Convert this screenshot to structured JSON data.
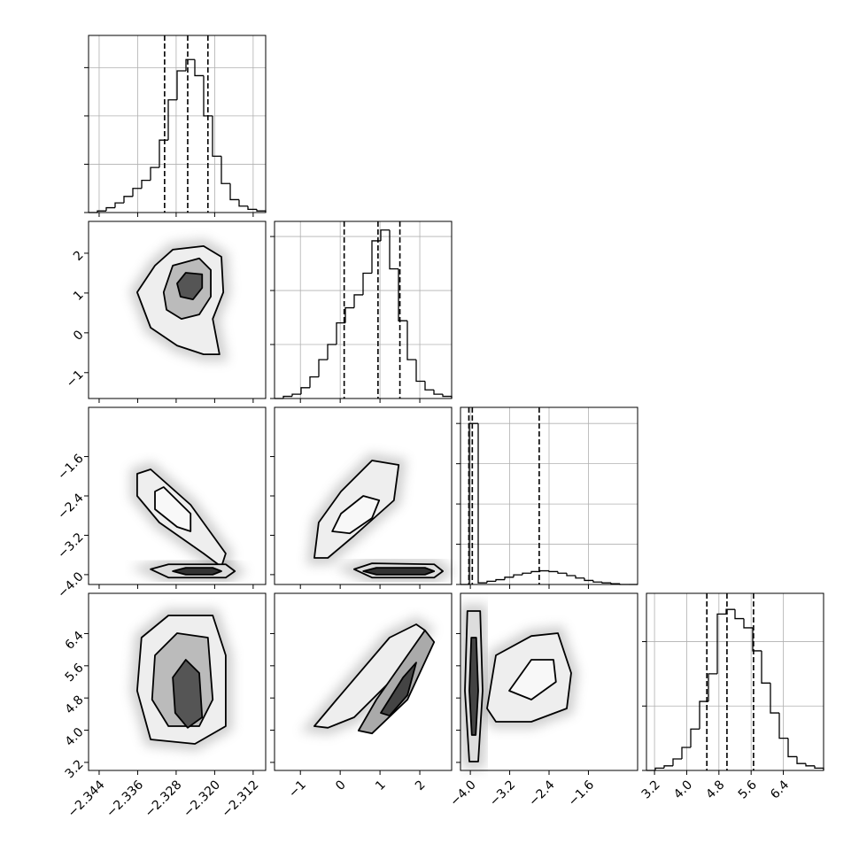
{
  "chart_data": {
    "type": "corner",
    "grid": true,
    "parameters": [
      {
        "lim": [
          -2.3462,
          -2.3094
        ],
        "ticks": [
          {
            "value": -2.344,
            "label": "−2.344"
          },
          {
            "value": -2.336,
            "label": "−2.336"
          },
          {
            "value": -2.328,
            "label": "−2.328"
          },
          {
            "value": -2.32,
            "label": "−2.320"
          },
          {
            "value": -2.312,
            "label": "−2.312"
          }
        ],
        "quantiles": [
          -2.3304,
          -2.3256,
          -2.3214
        ],
        "hist": {
          "bins": [
            -2.3462,
            -2.34436,
            -2.34252,
            -2.34068,
            -2.33884,
            -2.337,
            -2.33516,
            -2.33332,
            -2.33148,
            -2.32964,
            -2.3278,
            -2.32596,
            -2.32412,
            -2.32228,
            -2.32044,
            -2.3186,
            -2.31676,
            -2.31492,
            -2.31308,
            -2.31124,
            -2.3094
          ],
          "counts": [
            0,
            1,
            3,
            6,
            10,
            15,
            20,
            28,
            45,
            70,
            88,
            95,
            85,
            60,
            35,
            18,
            8,
            4,
            2,
            1
          ],
          "ylim": [
            0,
            110
          ],
          "yticks": [
            0,
            30,
            60,
            90
          ]
        }
      },
      {
        "lim": [
          -1.65,
          2.8
        ],
        "ticks": [
          {
            "value": -1,
            "label": "−1"
          },
          0,
          1,
          2
        ],
        "quantiles": [
          0.1,
          0.95,
          1.5
        ],
        "hist": {
          "bins": [
            -1.65,
            -1.4275,
            -1.205,
            -0.9825,
            -0.76,
            -0.5375,
            -0.315,
            -0.0925,
            0.13,
            0.3525,
            0.575,
            0.7975,
            1.02,
            1.2425,
            1.465,
            1.6875,
            1.91,
            2.1325,
            2.355,
            2.5775,
            2.8
          ],
          "counts": [
            0,
            1,
            2,
            5,
            10,
            18,
            25,
            35,
            42,
            48,
            58,
            73,
            78,
            60,
            36,
            18,
            8,
            4,
            2,
            1
          ],
          "ylim": [
            0,
            82
          ],
          "yticks": [
            0,
            25,
            50,
            75
          ]
        }
      },
      {
        "lim": [
          -4.2,
          -0.6
        ],
        "ticks": [
          {
            "value": -4.0,
            "label": "−4.0"
          },
          {
            "value": -3.2,
            "label": "−3.2"
          },
          {
            "value": -2.4,
            "label": "−2.4"
          },
          {
            "value": -1.6,
            "label": "−1.6"
          }
        ],
        "quantiles": [
          -4.03,
          -3.96,
          -2.6
        ],
        "hist": {
          "bins": [
            -4.2,
            -4.02,
            -3.84,
            -3.66,
            -3.48,
            -3.3,
            -3.12,
            -2.94,
            -2.76,
            -2.58,
            -2.4,
            -2.22,
            -2.04,
            -1.86,
            -1.68,
            -1.5,
            -1.32,
            -1.14,
            -0.96,
            -0.78,
            -0.6
          ],
          "counts": [
            0,
            200,
            2,
            4,
            6,
            9,
            12,
            14,
            16,
            17,
            16,
            14,
            11,
            8,
            5,
            3,
            2,
            1,
            0,
            0
          ],
          "ylim": [
            0,
            220
          ],
          "yticks": [
            0,
            50,
            100,
            150,
            200
          ]
        }
      },
      {
        "lim": [
          3.0,
          7.4
        ],
        "ticks": [
          3.2,
          {
            "value": 4.0,
            "label": "4.0"
          },
          4.8,
          5.6,
          6.4
        ],
        "quantiles": [
          4.5,
          5.0,
          5.66
        ],
        "hist": {
          "bins": [
            3.0,
            3.22,
            3.44,
            3.66,
            3.88,
            4.1,
            4.32,
            4.54,
            4.76,
            4.98,
            5.2,
            5.42,
            5.64,
            5.86,
            6.08,
            6.3,
            6.52,
            6.74,
            6.96,
            7.18,
            7.4
          ],
          "counts": [
            0,
            1,
            2,
            5,
            10,
            18,
            30,
            42,
            68,
            70,
            66,
            62,
            52,
            38,
            25,
            14,
            6,
            3,
            2,
            1
          ],
          "ylim": [
            0,
            77
          ],
          "yticks": [
            0,
            28,
            56
          ]
        }
      }
    ],
    "pairs": [
      {
        "contours": [
          {
            "fill": "#eeeeee",
            "x": [
              -2.3361,
              -2.3324,
              -2.3287,
              -2.3223,
              -2.3186,
              -2.3182,
              -2.3204,
              -2.319,
              -2.3223,
              -2.3278,
              -2.3333
            ],
            "y": [
              1.02,
              1.69,
              2.09,
              2.18,
              1.91,
              1.02,
              0.35,
              -0.54,
              -0.54,
              -0.32,
              0.13
            ]
          },
          {
            "fill": "#bbbbbb",
            "x": [
              -2.3306,
              -2.3287,
              -2.3232,
              -2.3208,
              -2.3208,
              -2.3232,
              -2.3269,
              -2.33
            ],
            "y": [
              1.02,
              1.69,
              1.87,
              1.58,
              0.91,
              0.46,
              0.35,
              0.58
            ]
          },
          {
            "fill": "#555555",
            "x": [
              -2.3278,
              -2.326,
              -2.3226,
              -2.3226,
              -2.3245,
              -2.3271
            ],
            "y": [
              1.24,
              1.51,
              1.47,
              1.13,
              0.84,
              0.91
            ]
          }
        ]
      },
      {
        "contours": [
          {
            "fill": "#eeeeee",
            "x": [
              -2.3361,
              -2.3333,
              -2.325,
              -2.3177,
              -2.3186,
              -2.3223,
              -2.3315,
              -2.3361
            ],
            "y": [
              -1.95,
              -1.86,
              -2.58,
              -3.57,
              -3.84,
              -3.57,
              -2.94,
              -2.4
            ]
          },
          {
            "fill": "#f8f8f8",
            "x": [
              -2.3324,
              -2.3306,
              -2.325,
              -2.325,
              -2.3278,
              -2.3324
            ],
            "y": [
              -2.31,
              -2.22,
              -2.76,
              -3.12,
              -3.03,
              -2.67
            ]
          },
          {
            "fill": "#dddddd",
            "x": [
              -2.3333,
              -2.3296,
              -2.3177,
              -2.3158,
              -2.3177,
              -2.3296
            ],
            "y": [
              -3.89,
              -3.79,
              -3.79,
              -3.93,
              -4.06,
              -4.06
            ]
          },
          {
            "fill": "#333333",
            "x": [
              -2.3287,
              -2.326,
              -2.3204,
              -2.3186,
              -2.3204,
              -2.326
            ],
            "y": [
              -3.93,
              -3.86,
              -3.86,
              -3.93,
              -4.0,
              -4.0
            ]
          }
        ]
      },
      {
        "contours": [
          {
            "fill": "#eeeeee",
            "x": [
              -0.65,
              -0.54,
              0.02,
              0.8,
              1.47,
              1.35,
              0.35,
              -0.31
            ],
            "y": [
              -3.66,
              -2.94,
              -2.31,
              -1.68,
              -1.77,
              -2.49,
              -3.21,
              -3.66
            ]
          },
          {
            "fill": "#f8f8f8",
            "x": [
              -0.2,
              0.02,
              0.58,
              0.98,
              0.8,
              0.24
            ],
            "y": [
              -3.12,
              -2.76,
              -2.4,
              -2.49,
              -2.85,
              -3.16
            ]
          },
          {
            "fill": "#dddddd",
            "x": [
              0.35,
              0.8,
              2.36,
              2.58,
              2.36,
              0.8
            ],
            "y": [
              -3.89,
              -3.77,
              -3.79,
              -3.93,
              -4.06,
              -4.06
            ]
          },
          {
            "fill": "#333333",
            "x": [
              0.58,
              0.91,
              2.13,
              2.36,
              2.13,
              0.91
            ],
            "y": [
              -3.93,
              -3.86,
              -3.86,
              -3.93,
              -4.0,
              -4.0
            ]
          }
        ]
      },
      {
        "contours": [
          {
            "fill": "#eeeeee",
            "x": [
              -2.3352,
              -2.3296,
              -2.3204,
              -2.3177,
              -2.3177,
              -2.3241,
              -2.3333,
              -2.3361
            ],
            "y": [
              6.3,
              6.85,
              6.85,
              5.86,
              4.1,
              3.66,
              3.77,
              4.98
            ]
          },
          {
            "fill": "#bbbbbb",
            "x": [
              -2.3324,
              -2.3278,
              -2.3214,
              -2.3204,
              -2.3232,
              -2.3296,
              -2.333
            ],
            "y": [
              5.86,
              6.41,
              6.3,
              4.76,
              4.1,
              4.1,
              4.76
            ]
          },
          {
            "fill": "#555555",
            "x": [
              -2.3287,
              -2.326,
              -2.3232,
              -2.3226,
              -2.3256,
              -2.3282
            ],
            "y": [
              5.31,
              5.75,
              5.42,
              4.32,
              4.06,
              4.43
            ]
          }
        ]
      },
      {
        "contours": [
          {
            "fill": "#eeeeee",
            "x": [
              -0.65,
              -0.09,
              1.24,
              1.91,
              2.13,
              1.47,
              0.35,
              -0.31
            ],
            "y": [
              4.1,
              4.76,
              6.3,
              6.63,
              6.48,
              5.42,
              4.32,
              4.06
            ]
          },
          {
            "fill": "#aaaaaa",
            "x": [
              0.46,
              0.91,
              1.69,
              2.13,
              2.36,
              1.69,
              0.8
            ],
            "y": [
              3.99,
              4.76,
              5.86,
              6.48,
              6.19,
              4.76,
              3.92
            ]
          },
          {
            "fill": "#444444",
            "x": [
              1.02,
              1.58,
              1.91,
              1.69,
              1.24
            ],
            "y": [
              4.43,
              5.31,
              5.68,
              4.87,
              4.36
            ]
          }
        ]
      },
      {
        "contours": [
          {
            "fill": "#dddddd",
            "x": [
              -4.06,
              -3.8,
              -3.75,
              -3.84,
              -4.02,
              -4.11
            ],
            "y": [
              6.96,
              6.96,
              4.98,
              3.22,
              3.22,
              4.98
            ]
          },
          {
            "fill": "#444444",
            "x": [
              -3.98,
              -3.88,
              -3.84,
              -3.89,
              -3.97,
              -4.02
            ],
            "y": [
              6.3,
              6.3,
              4.98,
              3.88,
              3.88,
              4.98
            ]
          },
          {
            "fill": "#eeeeee",
            "x": [
              -3.66,
              -3.48,
              -2.76,
              -2.22,
              -1.95,
              -2.04,
              -2.76,
              -3.48
            ],
            "y": [
              4.54,
              5.86,
              6.34,
              6.41,
              5.42,
              4.54,
              4.21,
              4.21
            ]
          },
          {
            "fill": "#f8f8f8",
            "x": [
              -3.21,
              -2.76,
              -2.31,
              -2.26,
              -2.76
            ],
            "y": [
              4.98,
              5.75,
              5.75,
              5.2,
              4.76
            ]
          }
        ]
      }
    ]
  }
}
